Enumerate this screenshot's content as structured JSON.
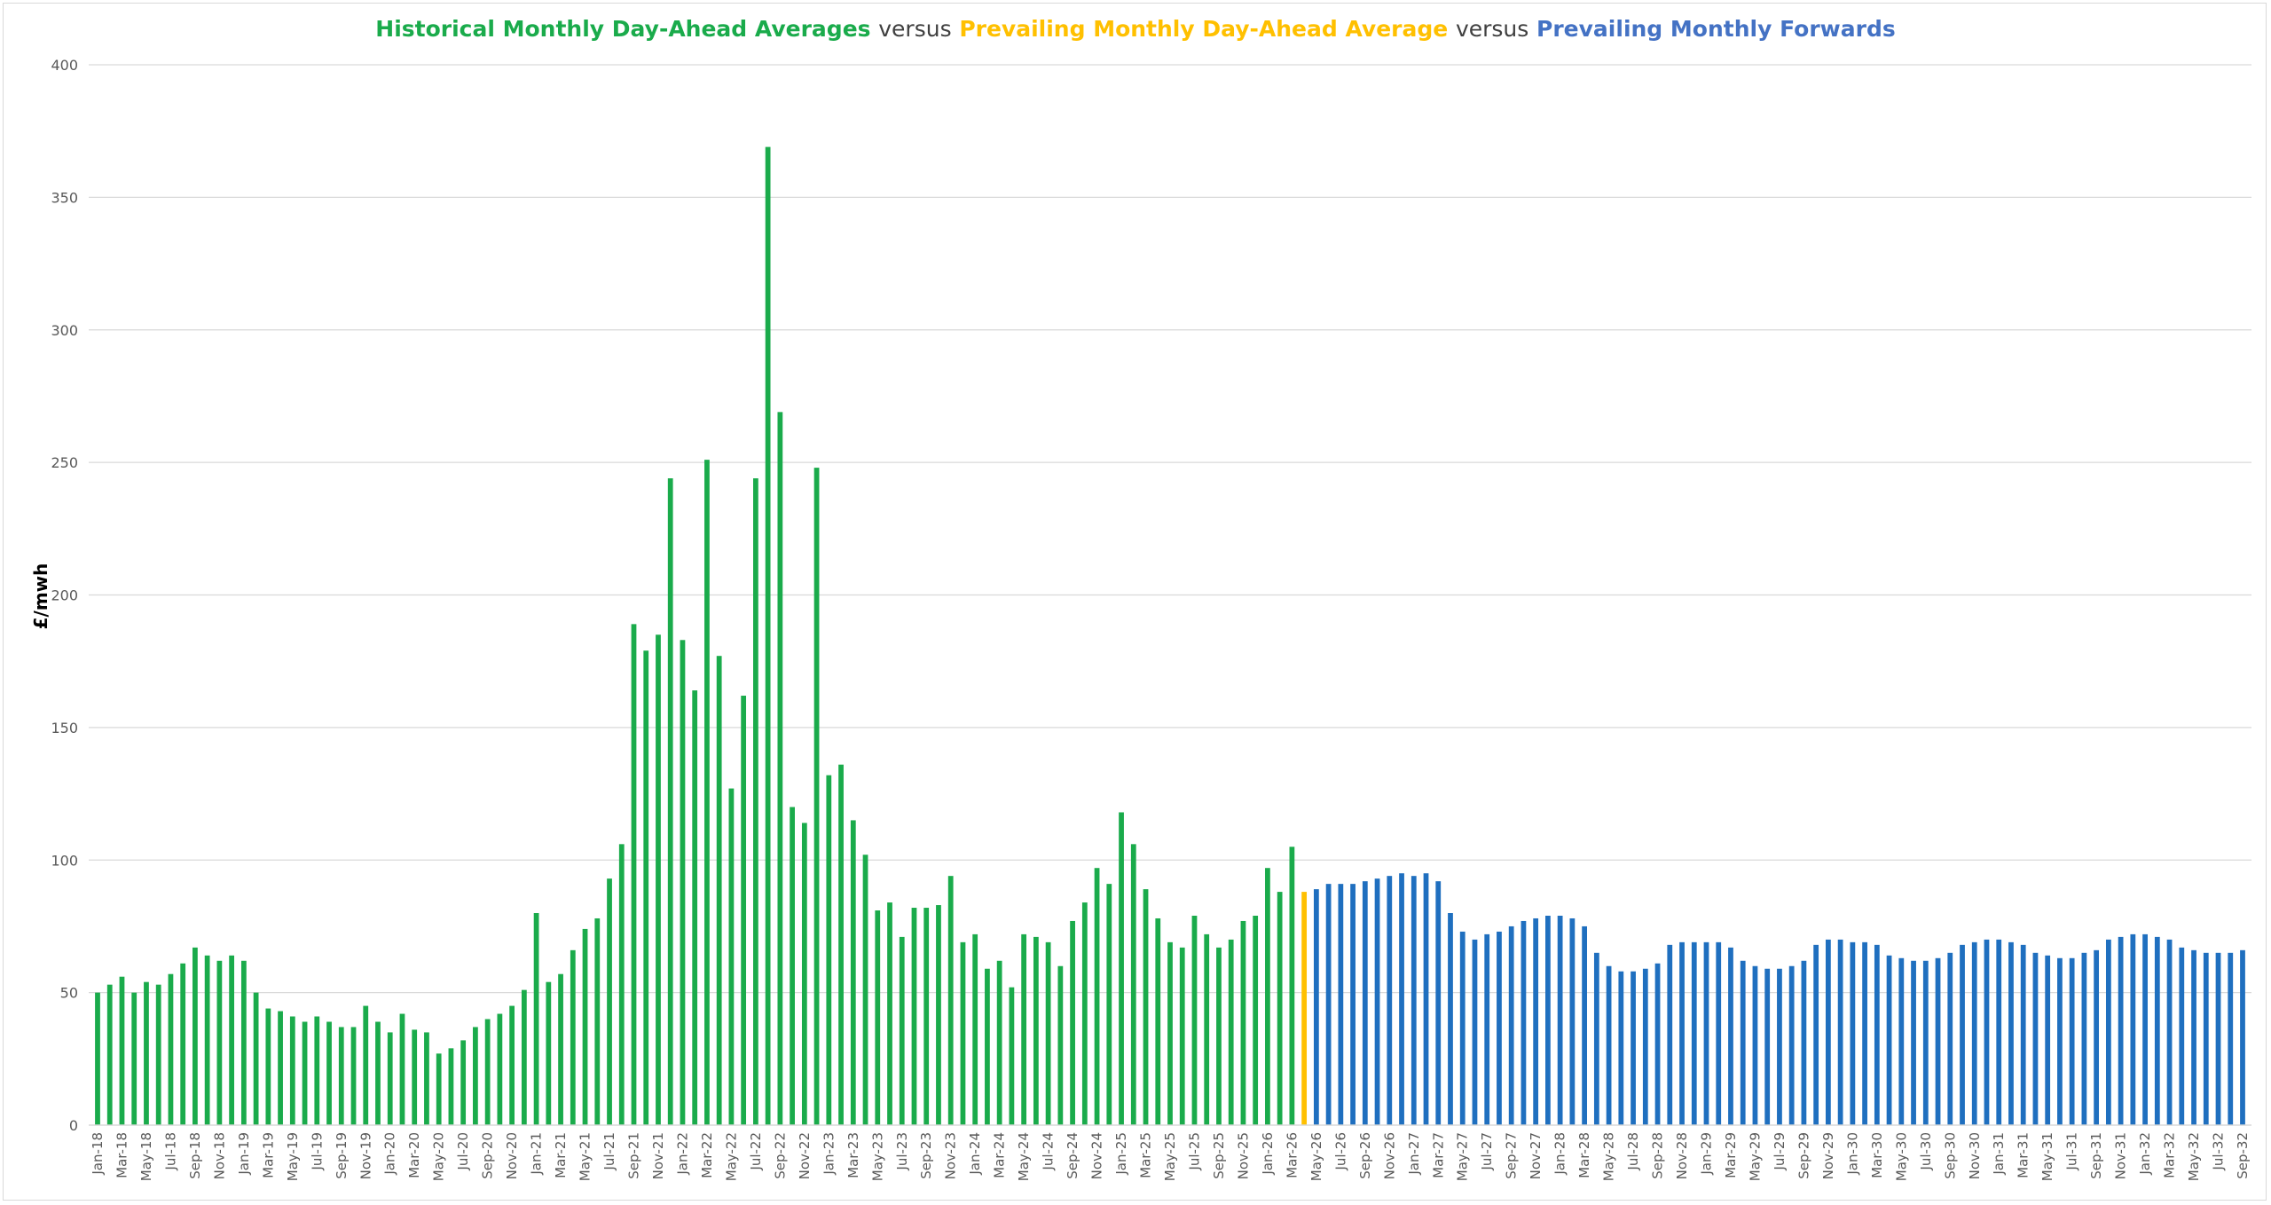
{
  "chart_data": {
    "type": "bar",
    "title": {
      "part1": "Historical Monthly Day-Ahead Averages",
      "sep1": "versus",
      "part2": "Prevailing Monthly Day-Ahead Average",
      "sep2": "versus",
      "part3": "Prevailing Monthly Forwards"
    },
    "ylabel": "£/mwh",
    "xlabel": "",
    "ylim": [
      0,
      400
    ],
    "yticks": [
      0,
      50,
      100,
      150,
      200,
      250,
      300,
      350,
      400
    ],
    "grid": true,
    "colors": {
      "historical": "#1aab4b",
      "prevailing": "#ffc000",
      "forwards": "#1f6fbf",
      "title_green": "#1aab4b",
      "title_yellow": "#ffc000",
      "title_blue": "#4472c4"
    },
    "start_month": "Jan-18",
    "x_tick_labels_every_other_month": [
      "Jan-18",
      "Mar-18",
      "May-18",
      "Jul-18",
      "Sep-18",
      "Nov-18",
      "Jan-19",
      "Mar-19",
      "May-19",
      "Jul-19",
      "Sep-19",
      "Nov-19",
      "Jan-20",
      "Mar-20",
      "May-20",
      "Jul-20",
      "Sep-20",
      "Nov-20",
      "Jan-21",
      "Mar-21",
      "May-21",
      "Jul-21",
      "Sep-21",
      "Nov-21",
      "Jan-22",
      "Mar-22",
      "May-22",
      "Jul-22",
      "Sep-22",
      "Nov-22",
      "Jan-23",
      "Mar-23",
      "May-23",
      "Jul-23",
      "Sep-23",
      "Nov-23",
      "Jan-24",
      "Mar-24",
      "May-24",
      "Jul-24",
      "Sep-24",
      "Nov-24",
      "Jan-25",
      "Mar-25",
      "May-25",
      "Jul-25",
      "Sep-25",
      "Nov-25",
      "Jan-26",
      "Mar-26",
      "May-26",
      "Jul-26",
      "Sep-26",
      "Nov-26",
      "Jan-27",
      "Mar-27",
      "May-27",
      "Jul-27",
      "Sep-27",
      "Nov-27",
      "Jan-28",
      "Mar-28",
      "May-28",
      "Jul-28",
      "Sep-28",
      "Nov-28",
      "Jan-29",
      "Mar-29",
      "May-29",
      "Jul-29",
      "Sep-29",
      "Nov-29",
      "Jan-30",
      "Mar-30",
      "May-30",
      "Jul-30",
      "Sep-30",
      "Nov-30",
      "Jan-31",
      "Mar-31",
      "May-31",
      "Jul-31",
      "Sep-31",
      "Nov-31",
      "Jan-32",
      "Mar-32",
      "May-32",
      "Jul-32",
      "Sep-32"
    ],
    "series": [
      {
        "name": "Historical Monthly Day-Ahead Averages",
        "values": [
          50,
          53,
          56,
          50,
          54,
          53,
          57,
          61,
          67,
          64,
          62,
          64,
          62,
          50,
          44,
          43,
          41,
          39,
          41,
          39,
          37,
          37,
          45,
          39,
          35,
          42,
          36,
          35,
          27,
          29,
          32,
          37,
          40,
          42,
          45,
          51,
          80,
          54,
          57,
          66,
          74,
          78,
          93,
          106,
          189,
          179,
          185,
          244,
          183,
          164,
          251,
          177,
          127,
          162,
          244,
          369,
          269,
          120,
          114,
          248,
          132,
          136,
          115,
          102,
          81,
          84,
          71,
          82,
          82,
          83,
          94,
          69,
          72,
          59,
          62,
          52,
          72,
          71,
          69,
          60,
          77,
          84,
          97,
          91,
          118,
          106,
          89,
          78,
          69,
          67,
          79,
          72,
          67,
          70,
          77,
          79,
          97,
          88,
          105
        ]
      },
      {
        "name": "Prevailing Monthly Day-Ahead Average",
        "values": [
          88
        ]
      },
      {
        "name": "Prevailing Monthly Forwards",
        "values": [
          89,
          91,
          91,
          91,
          92,
          93,
          94,
          95,
          94,
          95,
          92,
          80,
          73,
          70,
          72,
          73,
          75,
          77,
          78,
          79,
          79,
          78,
          75,
          65,
          60,
          58,
          58,
          59,
          61,
          68,
          69,
          69,
          69,
          69,
          67,
          62,
          60,
          59,
          59,
          60,
          62,
          68,
          70,
          70,
          69,
          69,
          68,
          64,
          63,
          62,
          62,
          63,
          65,
          68,
          69,
          70,
          70,
          69,
          68,
          65,
          64,
          63,
          63,
          65,
          66,
          70,
          71,
          72,
          72,
          71,
          70,
          67,
          66,
          65,
          65,
          65,
          66
        ]
      }
    ]
  }
}
